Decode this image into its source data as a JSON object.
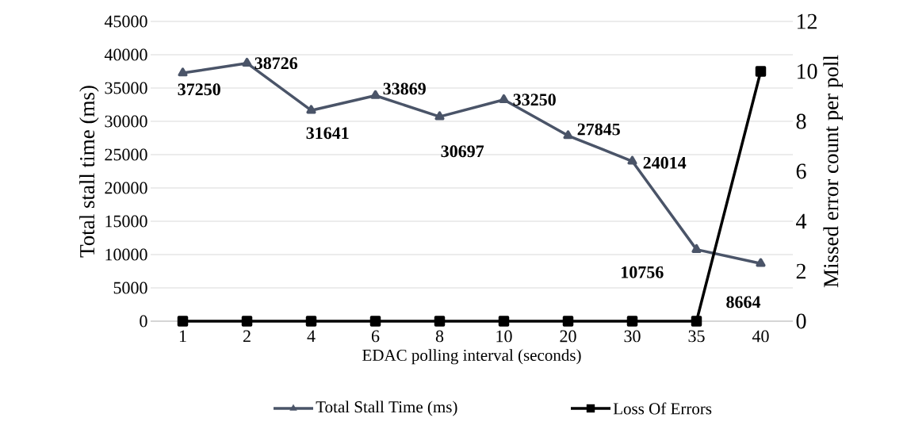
{
  "chart_data": {
    "type": "line",
    "xlabel": "EDAC polling interval (seconds)",
    "ylabel": "Total stall time (ms)",
    "y2label": "Missed error count per poll",
    "categories": [
      "1",
      "2",
      "4",
      "6",
      "8",
      "10",
      "20",
      "30",
      "35",
      "40"
    ],
    "series": [
      {
        "name": "Total Stall Time (ms)",
        "color": "#4a5468",
        "marker": "triangle",
        "values": [
          37250,
          38726,
          31641,
          33869,
          30697,
          33250,
          27845,
          24014,
          10756,
          8664
        ],
        "value_labels": [
          "37250",
          "38726",
          "31641",
          "33869",
          "30697",
          "33250",
          "27845",
          "24014",
          "10756",
          "8664"
        ]
      },
      {
        "name": "Loss Of Errors",
        "color": "#000000",
        "marker": "square",
        "axis": "y2",
        "values": [
          0,
          0,
          0,
          0,
          0,
          0,
          0,
          0,
          0,
          10
        ]
      }
    ],
    "ylim": [
      0,
      45000
    ],
    "yticks": [
      0,
      5000,
      10000,
      15000,
      20000,
      25000,
      30000,
      35000,
      40000,
      45000
    ],
    "y2lim": [
      0,
      12
    ],
    "y2ticks": [
      0,
      2,
      4,
      6,
      8,
      10,
      12
    ],
    "grid": "y",
    "legend": "bottom",
    "line_style": "solid"
  }
}
